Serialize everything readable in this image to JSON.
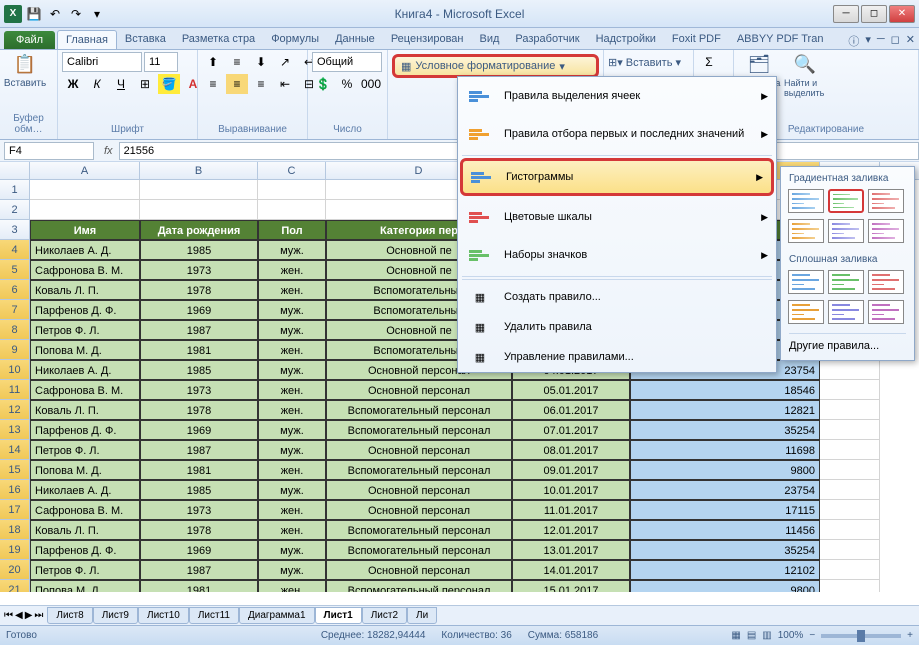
{
  "title": "Книга4 - Microsoft Excel",
  "tabs": {
    "file": "Файл",
    "list": [
      "Главная",
      "Вставка",
      "Разметка стра",
      "Формулы",
      "Данные",
      "Рецензирован",
      "Вид",
      "Разработчик",
      "Надстройки",
      "Foxit PDF",
      "ABBYY PDF Tran"
    ],
    "active": 0
  },
  "ribbon": {
    "groups": [
      "Буфер обм…",
      "Шрифт",
      "Выравнивание",
      "Число",
      "",
      "",
      "Редактирование"
    ],
    "paste": "Вставить",
    "font": "Calibri",
    "fontsize": "11",
    "numfmt": "Общий",
    "cf_label": "Условное форматирование",
    "insert": "Вставить",
    "sort": "ортировка фильтр",
    "find": "Найти и выделить"
  },
  "namebox": "F4",
  "formula": "21556",
  "cols": [
    "A",
    "B",
    "C",
    "D",
    "E",
    "F",
    "G"
  ],
  "col_widths": {
    "A": 110,
    "B": 118,
    "C": 68,
    "D": 186,
    "E": 118,
    "F": 190,
    "G": 60
  },
  "header_row": [
    "Имя",
    "Дата рождения",
    "Пол",
    "Категория пер",
    "",
    "",
    ""
  ],
  "header_bg": "#548235",
  "header_fg": "#ffffff",
  "data_bg": "#c6e0b4",
  "sel_bg": "#b4d4f0",
  "rows": [
    {
      "n": 4,
      "name": "Николаев А. Д.",
      "year": "1985",
      "sex": "муж.",
      "cat": "Основной пе",
      "date": "",
      "val": ""
    },
    {
      "n": 5,
      "name": "Сафронова В. М.",
      "year": "1973",
      "sex": "жен.",
      "cat": "Основной пе",
      "date": "",
      "val": ""
    },
    {
      "n": 6,
      "name": "Коваль Л. П.",
      "year": "1978",
      "sex": "жен.",
      "cat": "Вспомогательный",
      "date": "",
      "val": ""
    },
    {
      "n": 7,
      "name": "Парфенов Д. Ф.",
      "year": "1969",
      "sex": "муж.",
      "cat": "Вспомогательный",
      "date": "",
      "val": ""
    },
    {
      "n": 8,
      "name": "Петров Ф. Л.",
      "year": "1987",
      "sex": "муж.",
      "cat": "Основной пе",
      "date": "",
      "val": ""
    },
    {
      "n": 9,
      "name": "Попова М. Д.",
      "year": "1981",
      "sex": "жен.",
      "cat": "Вспомогательный",
      "date": "",
      "val": ""
    },
    {
      "n": 10,
      "name": "Николаев А. Д.",
      "year": "1985",
      "sex": "муж.",
      "cat": "Основной персонал",
      "date": "04.01.2017",
      "val": "23754"
    },
    {
      "n": 11,
      "name": "Сафронова В. М.",
      "year": "1973",
      "sex": "жен.",
      "cat": "Основной персонал",
      "date": "05.01.2017",
      "val": "18546"
    },
    {
      "n": 12,
      "name": "Коваль Л. П.",
      "year": "1978",
      "sex": "жен.",
      "cat": "Вспомогательный персонал",
      "date": "06.01.2017",
      "val": "12821"
    },
    {
      "n": 13,
      "name": "Парфенов Д. Ф.",
      "year": "1969",
      "sex": "муж.",
      "cat": "Вспомогательный персонал",
      "date": "07.01.2017",
      "val": "35254"
    },
    {
      "n": 14,
      "name": "Петров Ф. Л.",
      "year": "1987",
      "sex": "муж.",
      "cat": "Основной персонал",
      "date": "08.01.2017",
      "val": "11698"
    },
    {
      "n": 15,
      "name": "Попова М. Д.",
      "year": "1981",
      "sex": "жен.",
      "cat": "Вспомогательный персонал",
      "date": "09.01.2017",
      "val": "9800"
    },
    {
      "n": 16,
      "name": "Николаев А. Д.",
      "year": "1985",
      "sex": "муж.",
      "cat": "Основной персонал",
      "date": "10.01.2017",
      "val": "23754"
    },
    {
      "n": 17,
      "name": "Сафронова В. М.",
      "year": "1973",
      "sex": "жен.",
      "cat": "Основной персонал",
      "date": "11.01.2017",
      "val": "17115"
    },
    {
      "n": 18,
      "name": "Коваль Л. П.",
      "year": "1978",
      "sex": "жен.",
      "cat": "Вспомогательный персонал",
      "date": "12.01.2017",
      "val": "11456"
    },
    {
      "n": 19,
      "name": "Парфенов Д. Ф.",
      "year": "1969",
      "sex": "муж.",
      "cat": "Вспомогательный персонал",
      "date": "13.01.2017",
      "val": "35254"
    },
    {
      "n": 20,
      "name": "Петров Ф. Л.",
      "year": "1987",
      "sex": "муж.",
      "cat": "Основной персонал",
      "date": "14.01.2017",
      "val": "12102"
    },
    {
      "n": 21,
      "name": "Попова М. Д.",
      "year": "1981",
      "sex": "жен.",
      "cat": "Вспомогательный персонал",
      "date": "15.01.2017",
      "val": "9800"
    }
  ],
  "cf_menu": {
    "items": [
      {
        "label": "Правила выделения ячеек",
        "icon": "highlight-cells-icon",
        "sub": true
      },
      {
        "label": "Правила отбора первых и последних значений",
        "icon": "top-bottom-icon",
        "sub": true
      },
      {
        "label": "Гистограммы",
        "icon": "data-bars-icon",
        "sub": true,
        "hl": true
      },
      {
        "label": "Цветовые шкалы",
        "icon": "color-scales-icon",
        "sub": true
      },
      {
        "label": "Наборы значков",
        "icon": "icon-sets-icon",
        "sub": true
      }
    ],
    "actions": [
      "Создать правило...",
      "Удалить правила",
      "Управление правилами..."
    ]
  },
  "cf_sub": {
    "title1": "Градиентная заливка",
    "title2": "Сплошная заливка",
    "more": "Другие правила...",
    "gradient_colors": [
      [
        "#6aa6e0",
        "#a8d0f0"
      ],
      [
        "#68c068",
        "#a8e0a8"
      ],
      [
        "#e07070",
        "#f0b0b0"
      ],
      [
        "#e8a038",
        "#f4d090"
      ],
      [
        "#8888e0",
        "#c0c0f0"
      ],
      [
        "#c070c0",
        "#e0b0e0"
      ]
    ],
    "solid_colors": [
      "#6aa6e0",
      "#68c068",
      "#e07070",
      "#e8a038",
      "#8888e0",
      "#c070c0"
    ],
    "hl_index": 1
  },
  "sheets": [
    "Лист8",
    "Лист9",
    "Лист10",
    "Лист11",
    "Диаграмма1",
    "Лист1",
    "Лист2",
    "Ли"
  ],
  "active_sheet": 5,
  "status": {
    "ready": "Готово",
    "avg_label": "Среднее:",
    "avg": "18282,94444",
    "count_label": "Количество:",
    "count": "36",
    "sum_label": "Сумма:",
    "sum": "658186",
    "zoom": "100%"
  }
}
